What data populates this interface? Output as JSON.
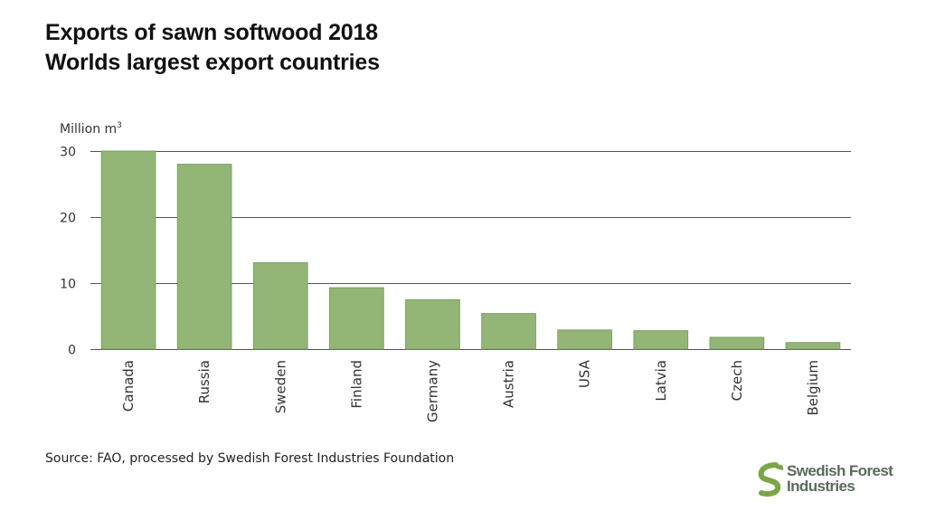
{
  "title": {
    "line1": "Exports of sawn softwood 2018",
    "line2": "Worlds largest export countries"
  },
  "colors": {
    "bar_fill": "#93b576",
    "bar_edge": "#7ea064",
    "gridline": "#555555",
    "logo_green": "#7aa646",
    "logo_text": "#5a6b5a"
  },
  "chart_data": {
    "type": "bar",
    "title": "Exports of sawn softwood 2018 — Worlds largest export countries",
    "ylabel": "Million m",
    "ylabel_superscript": "3",
    "xlabel": "",
    "ylim": [
      0,
      30
    ],
    "yticks": [
      0,
      10,
      20,
      30
    ],
    "grid": true,
    "categories": [
      "Canada",
      "Russia",
      "Sweden",
      "Finland",
      "Germany",
      "Austria",
      "USA",
      "Latvia",
      "Czech",
      "Belgium"
    ],
    "values": [
      30.0,
      28.0,
      13.1,
      9.3,
      7.5,
      5.4,
      2.9,
      2.8,
      1.8,
      1.0
    ]
  },
  "source": "Source: FAO, processed by Swedish Forest Industries Foundation",
  "logo": {
    "line1": "Swedish Forest",
    "line2": "Industries"
  }
}
